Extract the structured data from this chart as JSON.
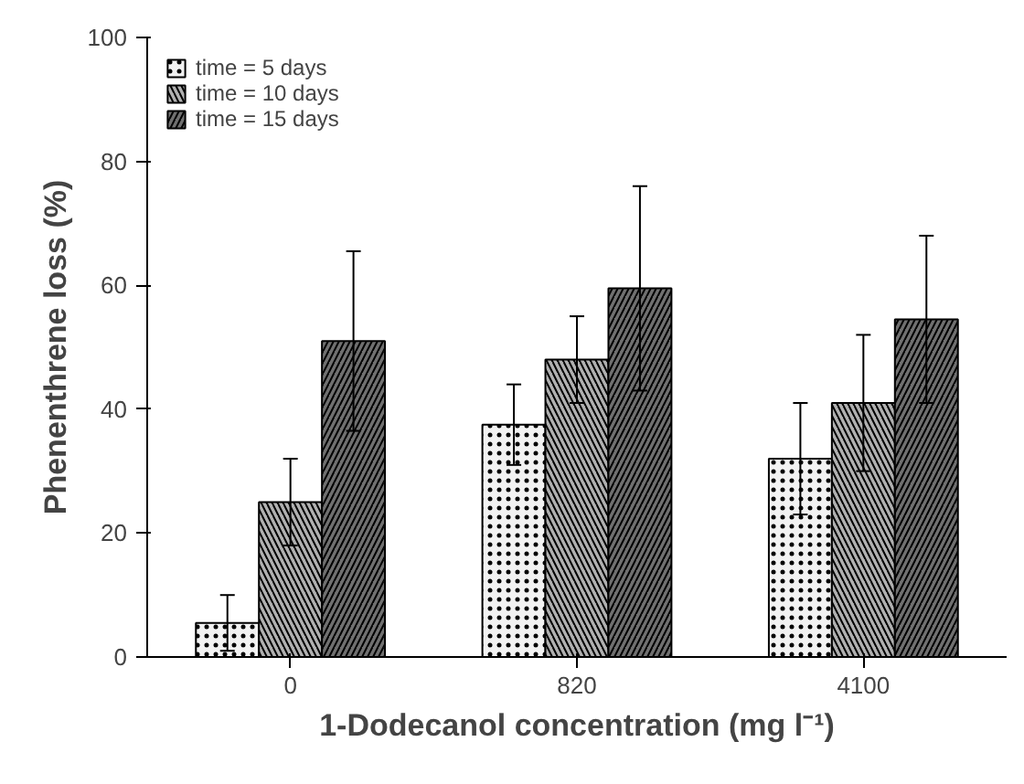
{
  "chart_data": {
    "type": "bar",
    "ylabel": "Phenenthrene loss (%)",
    "xlabel": "1-Dodecanol concentration (mg l⁻¹)",
    "categories": [
      "0",
      "820",
      "4100"
    ],
    "series": [
      {
        "name": "time = 5 days",
        "color": "#f2f2f2",
        "values": [
          5.5,
          37.5,
          32
        ],
        "errors": [
          4.5,
          6.5,
          9
        ]
      },
      {
        "name": "time = 10 days",
        "color": "#b0b0b0",
        "values": [
          25,
          48,
          41
        ],
        "errors": [
          7,
          7,
          11
        ]
      },
      {
        "name": "time = 15 days",
        "color": "#707070",
        "values": [
          51,
          59.5,
          54.5
        ],
        "errors": [
          14.5,
          16.5,
          13.5
        ]
      }
    ],
    "ylim": [
      0,
      100
    ],
    "yticks": [
      0,
      20,
      40,
      60,
      80,
      100
    ],
    "grid": false,
    "legend": "top left"
  }
}
